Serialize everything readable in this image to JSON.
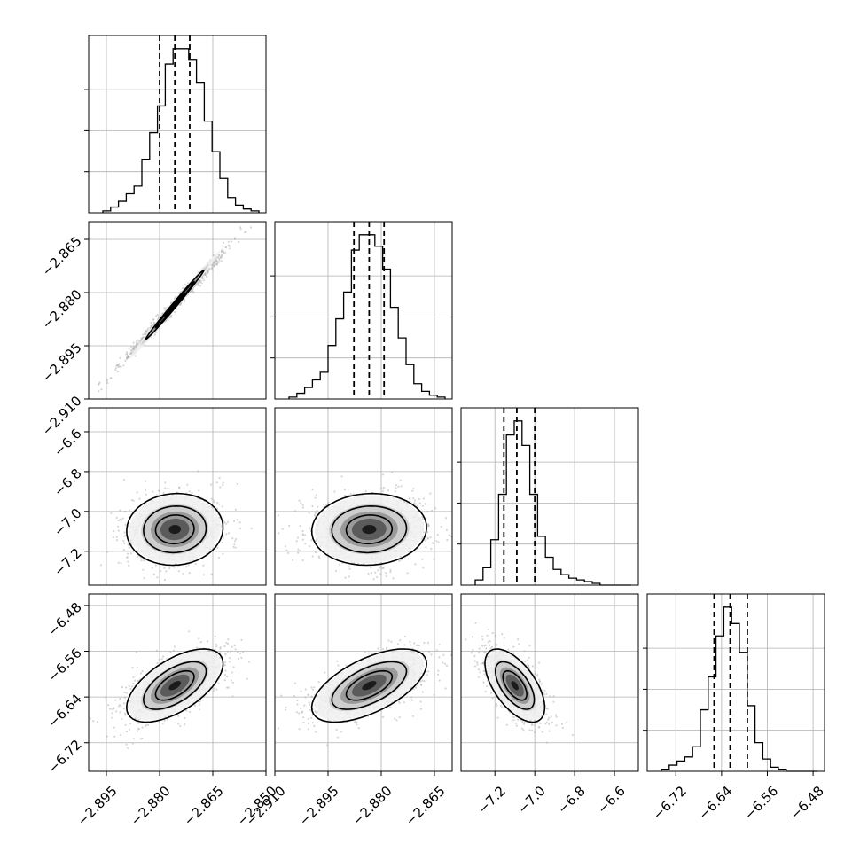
{
  "chart_data": {
    "type": "corner",
    "dimensions": 4,
    "grid": true,
    "colors": {
      "hist": "#000000",
      "scatter": "#b4b4b4",
      "contour": "#000000",
      "density": "#000000"
    },
    "params": [
      {
        "range": [
          -2.9,
          -2.85
        ],
        "ticks": [
          -2.895,
          -2.88,
          -2.865,
          -2.85
        ],
        "tick_labels": [
          "−2.895",
          "−2.880",
          "−2.865",
          "−2.850"
        ],
        "quantiles": [
          -2.88,
          -2.8757,
          -2.8715
        ]
      },
      {
        "range": [
          -2.91,
          -2.86
        ],
        "ticks": [
          -2.91,
          -2.895,
          -2.88,
          -2.865
        ],
        "tick_labels": [
          "−2.910",
          "−2.895",
          "−2.880",
          "−2.865"
        ],
        "quantiles": [
          -2.8877,
          -2.8834,
          -2.8792
        ]
      },
      {
        "range": [
          -7.37,
          -6.48
        ],
        "ticks": [
          -7.2,
          -7.0,
          -6.8,
          -6.6
        ],
        "tick_labels": [
          "−7.2",
          "−7.0",
          "−6.8",
          "−6.6"
        ],
        "quantiles": [
          -7.155,
          -7.09,
          -7.0
        ]
      },
      {
        "range": [
          -6.77,
          -6.46
        ],
        "ticks": [
          -6.72,
          -6.64,
          -6.56,
          -6.48
        ],
        "tick_labels": [
          "−6.72",
          "−6.64",
          "−6.56",
          "−6.48"
        ],
        "quantiles": [
          -6.653,
          -6.625,
          -6.595
        ]
      }
    ],
    "histograms": [
      {
        "counts": [
          1,
          3,
          6,
          10,
          14,
          28,
          42,
          56,
          78,
          86,
          86,
          80,
          68,
          48,
          32,
          18,
          8,
          4,
          2,
          1
        ]
      },
      {
        "counts": [
          1,
          3,
          6,
          10,
          14,
          28,
          42,
          56,
          78,
          86,
          86,
          80,
          68,
          48,
          32,
          18,
          8,
          4,
          2,
          1
        ]
      },
      {
        "counts": [
          3,
          10,
          26,
          52,
          86,
          94,
          80,
          52,
          28,
          16,
          9,
          6,
          4,
          3,
          2,
          1,
          0,
          0,
          0,
          0
        ]
      },
      {
        "counts": [
          1,
          3,
          5,
          7,
          12,
          30,
          46,
          66,
          80,
          72,
          58,
          32,
          14,
          6,
          2,
          1,
          0,
          0,
          0,
          0
        ]
      }
    ],
    "pairs": [
      {
        "x": 0,
        "y": 1,
        "mean": [
          -2.8757,
          -2.8834
        ],
        "sd": [
          0.0068,
          0.0081
        ],
        "rho": 0.995,
        "levels": [
          0.4,
          0.8,
          1.2
        ]
      },
      {
        "x": 0,
        "y": 2,
        "mean": [
          -2.8757,
          -7.09
        ],
        "sd": [
          0.0068,
          0.09
        ],
        "rho": 0.05,
        "levels": [
          0.8,
          1.3,
          2.0
        ]
      },
      {
        "x": 1,
        "y": 2,
        "mean": [
          -2.8834,
          -7.09
        ],
        "sd": [
          0.0081,
          0.09
        ],
        "rho": 0.05,
        "levels": [
          0.8,
          1.3,
          2.0
        ]
      },
      {
        "x": 0,
        "y": 3,
        "mean": [
          -2.8757,
          -6.62
        ],
        "sd": [
          0.0068,
          0.032
        ],
        "rho": 0.6,
        "levels": [
          0.8,
          1.3,
          2.0
        ]
      },
      {
        "x": 1,
        "y": 3,
        "mean": [
          -2.8834,
          -6.62
        ],
        "sd": [
          0.0081,
          0.032
        ],
        "rho": 0.6,
        "levels": [
          0.8,
          1.3,
          2.0
        ]
      },
      {
        "x": 2,
        "y": 3,
        "mean": [
          -7.1,
          -6.62
        ],
        "sd": [
          0.075,
          0.032
        ],
        "rho": -0.6,
        "levels": [
          0.8,
          1.3,
          2.0
        ]
      }
    ]
  }
}
